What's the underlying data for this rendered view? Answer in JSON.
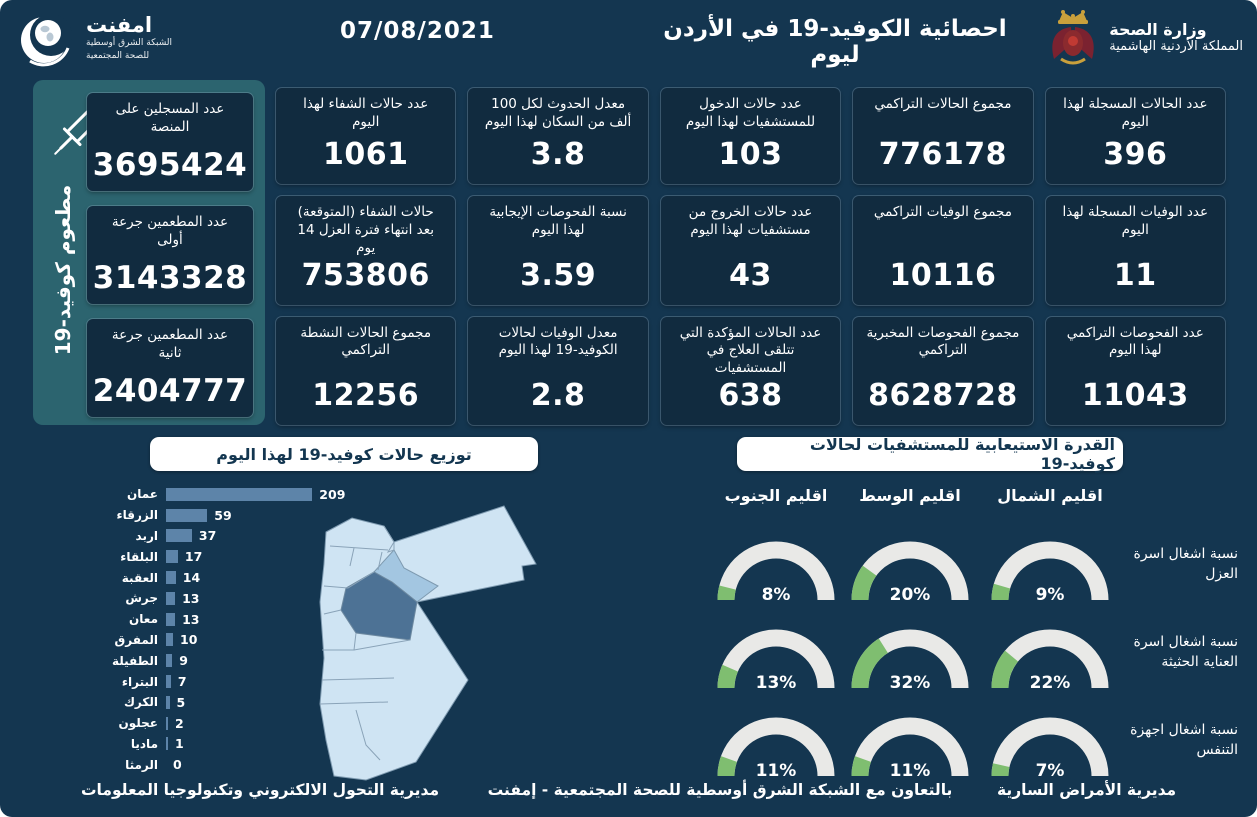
{
  "colors": {
    "page_bg": "#143650",
    "card_bg": "#112b3f",
    "panel_teal": "#2c646f",
    "bar_fill": "#5d84a9",
    "gauge_track": "#e9e9e7",
    "gauge_fill": "#7fbe70",
    "map_light": "#cfe4f3",
    "map_medium": "#a3c6e1",
    "map_dark": "#4d7295",
    "title_box_bg": "#ffffff",
    "title_box_text": "#133650"
  },
  "header": {
    "title": "احصائية الكوفيد-19 في الأردن ليوم",
    "date": "07/08/2021",
    "emphnet": {
      "name": "امفنت",
      "line1": "الشبكة الشرق أوسطية",
      "line2": "للصحة المجتمعية"
    },
    "ministry": {
      "line1": "وزارة الصحة",
      "line2": "المملكة الأردنية الهاشمية"
    }
  },
  "vaccine_panel": {
    "side_label": "مطعوم كوفيد-19",
    "cards": [
      {
        "label": "عدد المسجلين على المنصة",
        "value": "3695424"
      },
      {
        "label": "عدد المطعمين جرعة أولى",
        "value": "3143328"
      },
      {
        "label": "عدد المطعمين جرعة ثانية",
        "value": "2404777"
      }
    ]
  },
  "stats_cards": [
    {
      "label": "عدد الحالات المسجلة لهذا اليوم",
      "value": "396"
    },
    {
      "label": "مجموع الحالات التراكمي",
      "value": "776178"
    },
    {
      "label": "عدد حالات الدخول للمستشفيات لهذا اليوم",
      "value": "103"
    },
    {
      "label": "معدل الحدوث لكل 100 ألف من السكان لهذا اليوم",
      "value": "3.8"
    },
    {
      "label": "عدد حالات الشفاء لهذا اليوم",
      "value": "1061"
    },
    {
      "label": "عدد الوفيات المسجلة لهذا اليوم",
      "value": "11"
    },
    {
      "label": "مجموع الوفيات التراكمي",
      "value": "10116"
    },
    {
      "label": "عدد حالات الخروج من مستشفيات لهذا اليوم",
      "value": "43"
    },
    {
      "label": "نسبة الفحوصات الإيجابية لهذا اليوم",
      "value": "3.59"
    },
    {
      "label": "حالات الشفاء (المتوقعة) بعد انتهاء فترة العزل 14 يوم",
      "value": "753806"
    },
    {
      "label": "عدد الفحوصات التراكمي لهذا اليوم",
      "value": "11043"
    },
    {
      "label": "مجموع الفحوصات المخبرية التراكمي",
      "value": "8628728"
    },
    {
      "label": "عدد الحالات المؤكدة التي تتلقى العلاج في المستشفيات",
      "value": "638"
    },
    {
      "label": "معدل الوفيات لحالات الكوفيد-19 لهذا اليوم",
      "value": "2.8"
    },
    {
      "label": "مجموع الحالات النشطة التراكمي",
      "value": "12256"
    }
  ],
  "chart_data": [
    {
      "type": "bar",
      "title": "توزيع حالات كوفيد-19 لهذا اليوم",
      "orientation": "horizontal",
      "categories": [
        "عمان",
        "الزرقاء",
        "اربد",
        "البلقاء",
        "العقبة",
        "جرش",
        "معان",
        "المفرق",
        "الطفيلة",
        "البتراء",
        "الكرك",
        "عجلون",
        "ماديا",
        "الرمثا"
      ],
      "values": [
        209,
        59,
        37,
        17,
        14,
        13,
        13,
        10,
        9,
        7,
        5,
        2,
        1,
        0
      ],
      "xlim": [
        0,
        230
      ],
      "grid": false,
      "legend": false
    },
    {
      "type": "gauge",
      "title": "القدرة الاستيعابية للمستشفيات لحالات كوفيد-19",
      "unit": "%",
      "columns": [
        "اقليم الشمال",
        "اقليم الوسط",
        "اقليم الجنوب"
      ],
      "rows": [
        {
          "label": "نسبة اشغال اسرة العزل",
          "values": [
            9,
            20,
            8
          ]
        },
        {
          "label": "نسبة اشغال اسرة العناية الحثيثة",
          "values": [
            22,
            32,
            13
          ]
        },
        {
          "label": "نسبة اشغال اجهزة التنفس",
          "values": [
            7,
            11,
            11
          ]
        }
      ]
    }
  ],
  "footer": {
    "right": "مديرية الأمراض السارية",
    "center": "بالتعاون مع الشبكة الشرق أوسطية للصحة المجتمعية - إمفنت",
    "left": "مديرية التحول الالكتروني وتكنولوجيا المعلومات"
  }
}
